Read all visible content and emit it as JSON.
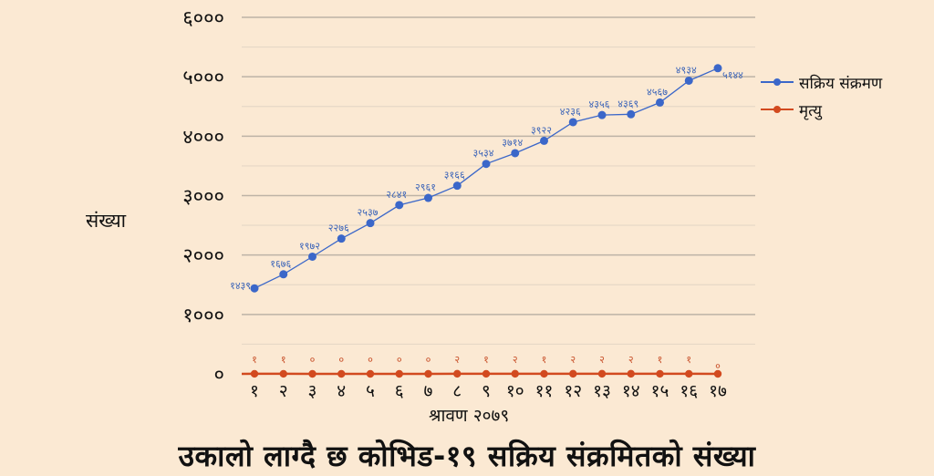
{
  "chart_data": {
    "type": "line",
    "title": "उकालो लाग्दै छ कोभिड-१९ सक्रिय संक्रमितको संख्या",
    "xlabel": "श्रावण २०७९",
    "ylabel": "संख्या",
    "categories": [
      "१",
      "२",
      "३",
      "४",
      "५",
      "६",
      "७",
      "८",
      "९",
      "१०",
      "११",
      "१२",
      "१३",
      "१४",
      "१५",
      "१६",
      "१७"
    ],
    "x": [
      1,
      2,
      3,
      4,
      5,
      6,
      7,
      8,
      9,
      10,
      11,
      12,
      13,
      14,
      15,
      16,
      17
    ],
    "series": [
      {
        "name": "सक्रिय संक्रमण",
        "color": "#3b67c9",
        "values": [
          1439,
          1676,
          1972,
          2276,
          2537,
          2841,
          2961,
          3166,
          3534,
          3714,
          3922,
          4236,
          4356,
          4369,
          4567,
          4934,
          5144
        ],
        "labels": [
          "१४३९",
          "१६७६",
          "१९७२",
          "२२७६",
          "२५३७",
          "२८४१",
          "२९६१",
          "३१६६",
          "३५३४",
          "३७१४",
          "३९२२",
          "४२३६",
          "४३५६",
          "४३६९",
          "४५६७",
          "४९३४",
          "५१४४"
        ]
      },
      {
        "name": "मृत्यु",
        "color": "#d24a1f",
        "values": [
          1,
          1,
          0,
          0,
          0,
          0,
          0,
          2,
          1,
          2,
          1,
          2,
          2,
          2,
          1,
          1,
          0
        ],
        "labels": [
          "१",
          "१",
          "०",
          "०",
          "०",
          "०",
          "०",
          "२",
          "१",
          "२",
          "१",
          "२",
          "२",
          "२",
          "१",
          "१",
          "०"
        ]
      }
    ],
    "yticks": [
      0,
      1000,
      2000,
      3000,
      4000,
      5000,
      6000
    ],
    "ytick_labels": [
      "०",
      "१०००",
      "२०००",
      "३०००",
      "४०००",
      "५०००",
      "६०००"
    ],
    "ylim": [
      0,
      6000
    ],
    "grid": true,
    "legend_position": "right"
  },
  "legend": {
    "active_label": "सक्रिय संक्रमण",
    "death_label": "मृत्यु"
  },
  "axis": {
    "ylabel": "संख्या",
    "xlabel": "श्रावण २०७९"
  },
  "title": "उकालो लाग्दै छ कोभिड-१९ सक्रिय संक्रमितको संख्या",
  "colors": {
    "background": "#fbe9d3",
    "active": "#3b67c9",
    "death": "#d24a1f",
    "grid_major": "#bdb3a6",
    "grid_minor": "#e6d8c6"
  }
}
